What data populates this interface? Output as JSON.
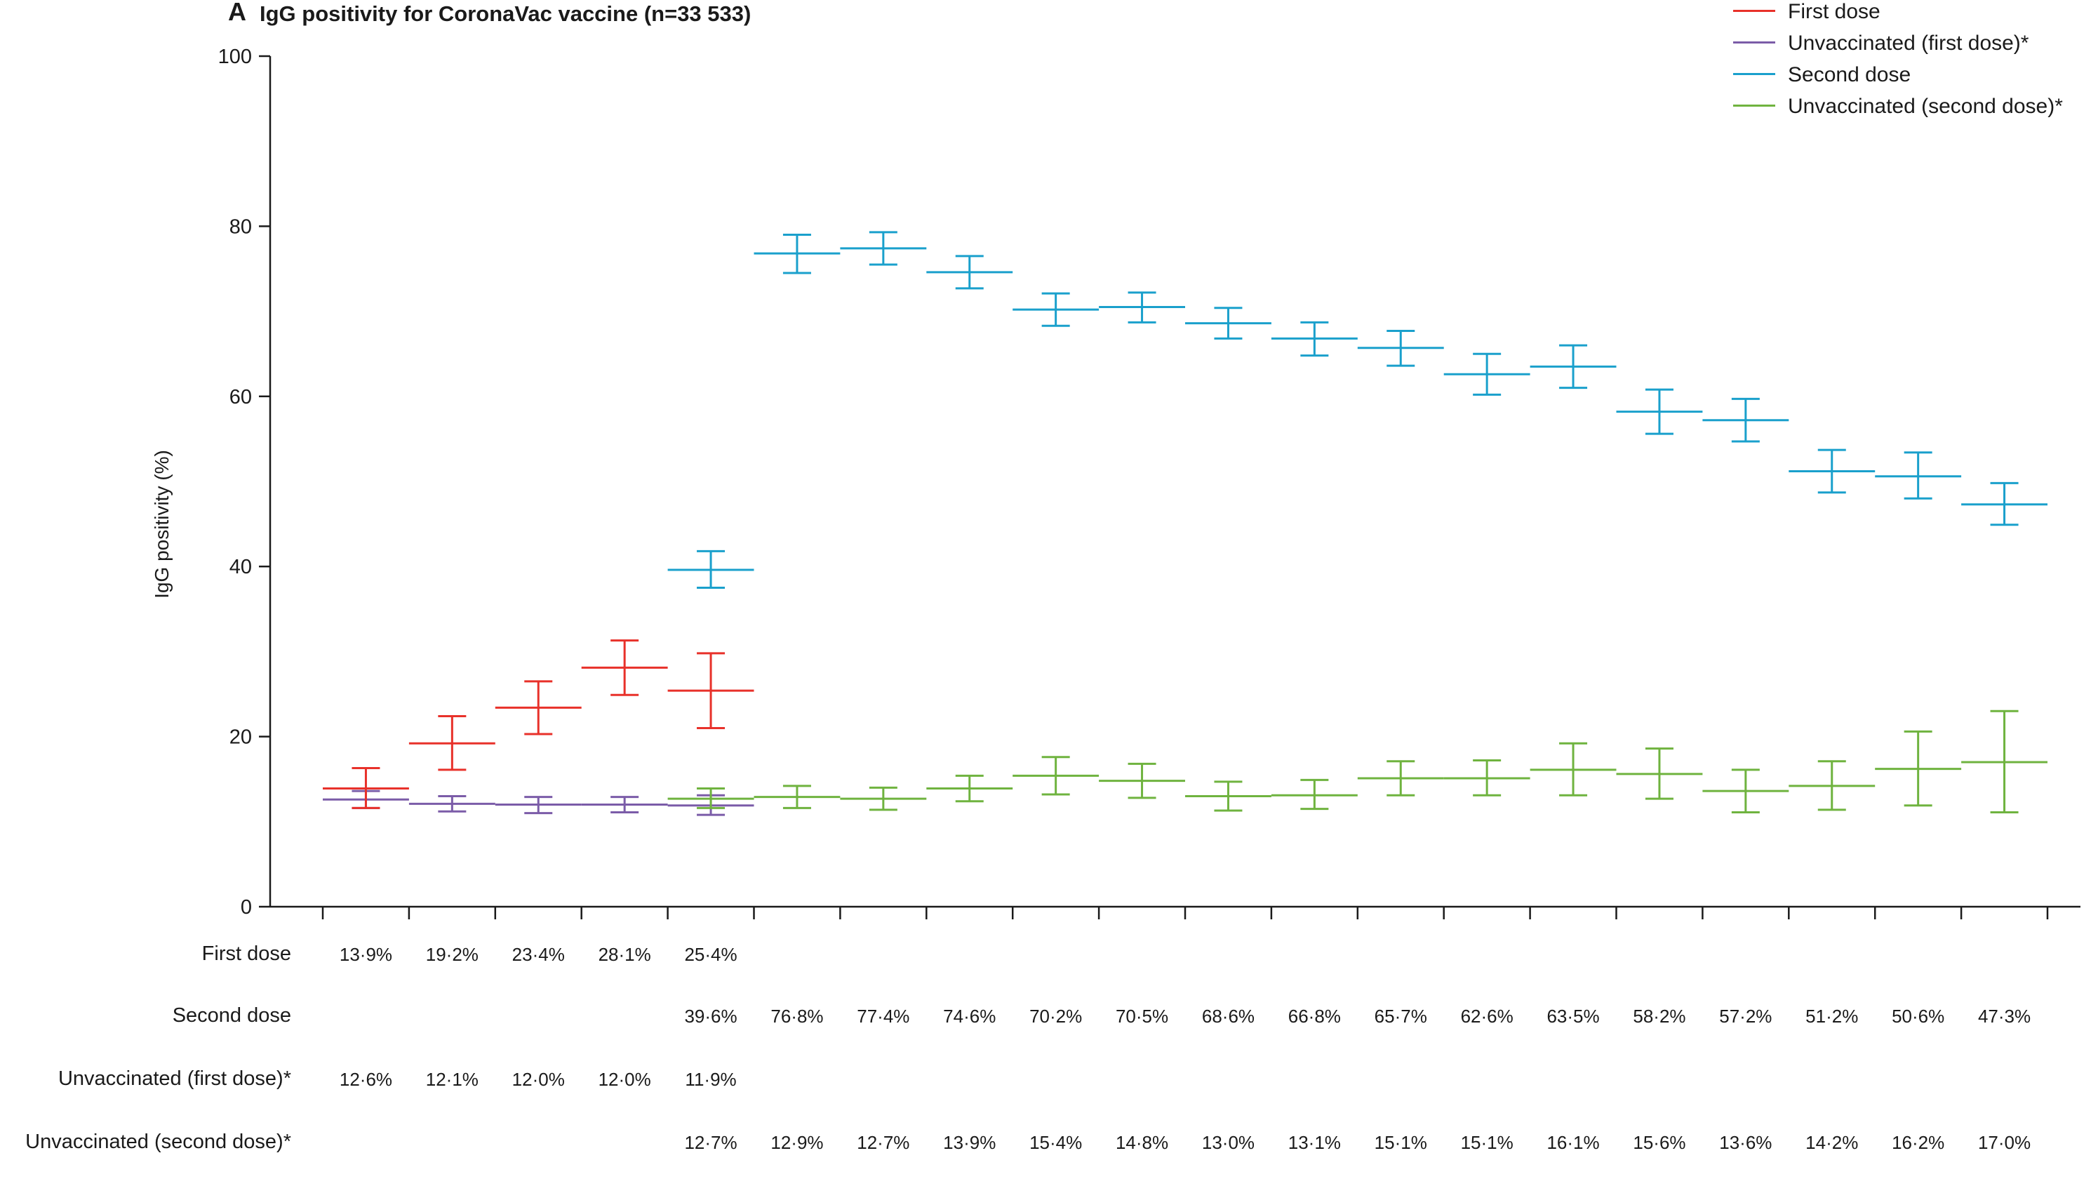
{
  "panel_letter": "A",
  "chart_data": {
    "type": "error-bar",
    "title": "IgG positivity for CoronaVac vaccine (n=33 533)",
    "xlabel": "",
    "ylabel": "IgG positivity (%)",
    "ylim": [
      0,
      100
    ],
    "yticks": [
      0,
      20,
      40,
      60,
      80,
      100
    ],
    "n_intervals": 20,
    "grid": false,
    "legend_position": "top-right",
    "series": [
      {
        "name": "First dose",
        "color": "#e8312a",
        "start": 0,
        "values": [
          13.9,
          19.2,
          23.4,
          28.1,
          25.4
        ],
        "lower": [
          11.6,
          16.1,
          20.3,
          24.9,
          21.0
        ],
        "upper": [
          16.3,
          22.4,
          26.5,
          31.3,
          29.8
        ]
      },
      {
        "name": "Unvaccinated (first dose)*",
        "color": "#7b5ca8",
        "start": 0,
        "values": [
          12.6,
          12.1,
          12.0,
          12.0,
          11.9
        ],
        "lower": [
          11.6,
          11.2,
          11.0,
          11.1,
          10.8
        ],
        "upper": [
          13.6,
          13.0,
          12.9,
          12.9,
          13.1
        ]
      },
      {
        "name": "Second dose",
        "color": "#1aa0cc",
        "start": 4,
        "values": [
          39.6,
          76.8,
          77.4,
          74.6,
          70.2,
          70.5,
          68.6,
          66.8,
          65.7,
          62.6,
          63.5,
          58.2,
          57.2,
          51.2,
          50.6,
          47.3
        ],
        "lower": [
          37.5,
          74.5,
          75.5,
          72.7,
          68.3,
          68.7,
          66.8,
          64.8,
          63.6,
          60.2,
          61.0,
          55.6,
          54.7,
          48.7,
          48.0,
          44.9
        ],
        "upper": [
          41.8,
          79.0,
          79.3,
          76.5,
          72.1,
          72.2,
          70.4,
          68.7,
          67.7,
          65.0,
          66.0,
          60.8,
          59.7,
          53.7,
          53.4,
          49.8
        ]
      },
      {
        "name": "Unvaccinated (second dose)*",
        "color": "#6fb33f",
        "start": 4,
        "values": [
          12.7,
          12.9,
          12.7,
          13.9,
          15.4,
          14.8,
          13.0,
          13.1,
          15.1,
          15.1,
          16.1,
          15.6,
          13.6,
          14.2,
          16.2,
          17.0
        ],
        "lower": [
          11.6,
          11.6,
          11.4,
          12.4,
          13.2,
          12.8,
          11.3,
          11.5,
          13.1,
          13.1,
          13.1,
          12.7,
          11.1,
          11.4,
          11.9,
          11.1
        ],
        "upper": [
          13.9,
          14.2,
          14.0,
          15.4,
          17.6,
          16.8,
          14.7,
          14.9,
          17.1,
          17.2,
          19.2,
          18.6,
          16.1,
          17.1,
          20.6,
          23.0
        ]
      }
    ]
  },
  "table": {
    "rows": [
      {
        "label": "First dose",
        "start": 0,
        "values": [
          "13·9%",
          "19·2%",
          "23·4%",
          "28·1%",
          "25·4%"
        ]
      },
      {
        "label": "Second dose",
        "start": 4,
        "values": [
          "39·6%",
          "76·8%",
          "77·4%",
          "74·6%",
          "70·2%",
          "70·5%",
          "68·6%",
          "66·8%",
          "65·7%",
          "62·6%",
          "63·5%",
          "58·2%",
          "57·2%",
          "51·2%",
          "50·6%",
          "47·3%"
        ]
      },
      {
        "label": "Unvaccinated (first dose)*",
        "start": 0,
        "values": [
          "12·6%",
          "12·1%",
          "12·0%",
          "12·0%",
          "11·9%"
        ]
      },
      {
        "label": "Unvaccinated (second dose)*",
        "start": 4,
        "values": [
          "12·7%",
          "12·9%",
          "12·7%",
          "13·9%",
          "15·4%",
          "14·8%",
          "13·0%",
          "13·1%",
          "15·1%",
          "15·1%",
          "16·1%",
          "15·6%",
          "13·6%",
          "14·2%",
          "16·2%",
          "17·0%"
        ]
      }
    ]
  }
}
